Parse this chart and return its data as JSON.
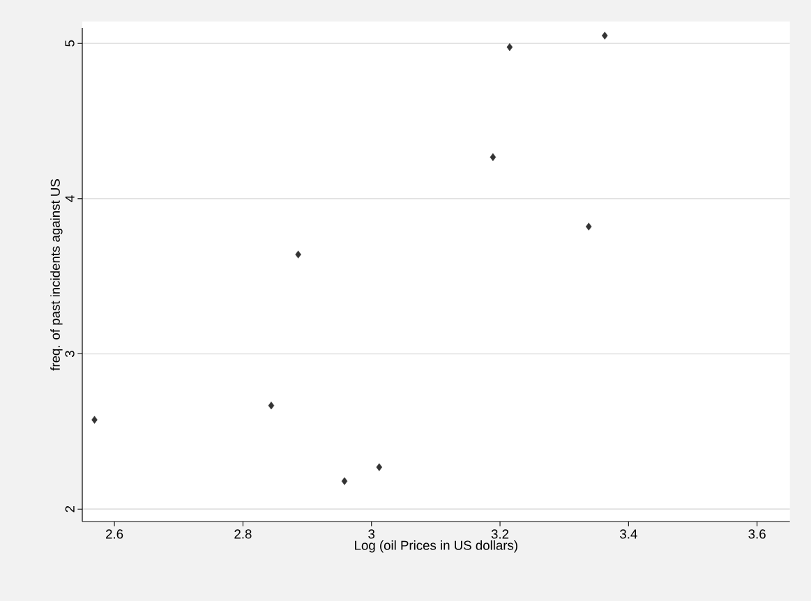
{
  "chart_data": {
    "type": "scatter",
    "xlabel": "Log (oil Prices in US dollars)",
    "ylabel": "freq. of past incidents against US",
    "x": [
      2.569,
      2.844,
      2.886,
      2.958,
      3.012,
      3.189,
      3.215,
      3.338,
      3.363
    ],
    "values": [
      2.575,
      2.667,
      3.64,
      2.18,
      2.27,
      4.267,
      4.976,
      3.82,
      5.05
    ],
    "color": "#333333",
    "marker": "diamond",
    "xlim": [
      2.55,
      3.651
    ],
    "ylim": [
      1.92,
      5.1
    ],
    "xticks": [
      2.6,
      2.8,
      3,
      3.2,
      3.4,
      3.6
    ],
    "yticks": [
      2,
      3,
      4,
      5
    ],
    "grid": "y"
  }
}
